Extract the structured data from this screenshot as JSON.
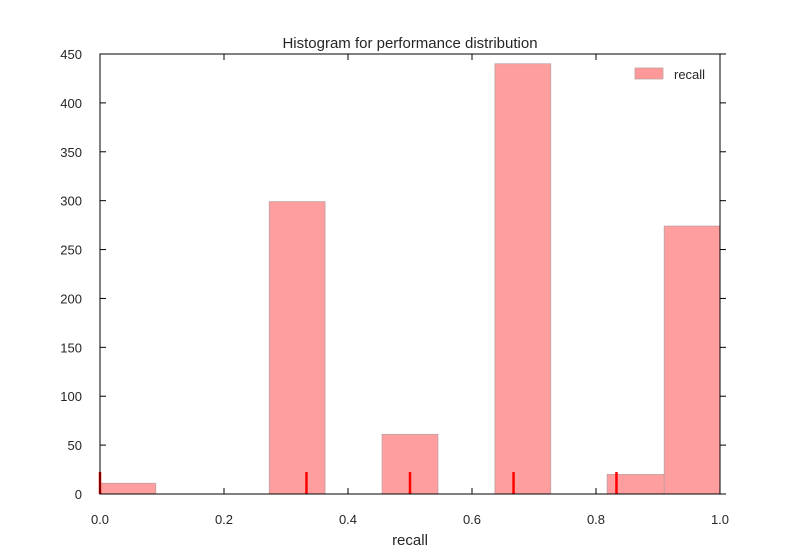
{
  "chart_data": {
    "type": "bar",
    "title": "Histogram for performance distribution",
    "xlabel": "recall",
    "ylabel": "",
    "xlim": [
      0.0,
      1.0
    ],
    "ylim": [
      0,
      450
    ],
    "xticks": [
      0.0,
      0.2,
      0.4,
      0.6,
      0.8,
      1.0
    ],
    "xtick_labels": [
      "0.0",
      "0.2",
      "0.4",
      "0.6",
      "0.8",
      "1.0"
    ],
    "yticks": [
      0,
      50,
      100,
      150,
      200,
      250,
      300,
      350,
      400,
      450
    ],
    "ytick_labels": [
      "0",
      "50",
      "100",
      "150",
      "200",
      "250",
      "300",
      "350",
      "400",
      "450"
    ],
    "grid": false,
    "legend_position": "top-right",
    "series": [
      {
        "name": "recall",
        "color": "#ff9999",
        "bins": [
          {
            "x0": 0.0,
            "x1": 0.09,
            "value": 11
          },
          {
            "x0": 0.273,
            "x1": 0.363,
            "value": 299
          },
          {
            "x0": 0.455,
            "x1": 0.545,
            "value": 61
          },
          {
            "x0": 0.637,
            "x1": 0.727,
            "value": 440
          },
          {
            "x0": 0.818,
            "x1": 0.91,
            "value": 20
          },
          {
            "x0": 0.91,
            "x1": 1.0,
            "value": 274
          }
        ]
      }
    ],
    "rug": {
      "color": "#ff0000",
      "x": [
        0.0,
        0.333,
        0.5,
        0.667,
        0.833
      ]
    }
  }
}
